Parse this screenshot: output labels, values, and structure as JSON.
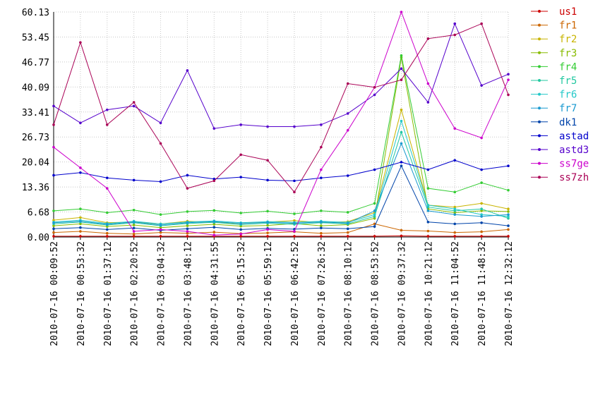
{
  "chart_data": {
    "type": "line",
    "title": "",
    "xlabel": "",
    "ylabel": "",
    "ylim": [
      0,
      60.13
    ],
    "grid": true,
    "legend_placement": "right",
    "yticks": [
      "0.00",
      "6.68",
      "13.36",
      "20.04",
      "26.73",
      "33.41",
      "40.09",
      "46.77",
      "53.45",
      "60.13"
    ],
    "x": [
      "2010-07-16 00:09:52",
      "2010-07-16 00:53:32",
      "2010-07-16 01:37:12",
      "2010-07-16 02:20:52",
      "2010-07-16 03:04:32",
      "2010-07-16 03:48:12",
      "2010-07-16 04:31:55",
      "2010-07-16 05:15:32",
      "2010-07-16 05:59:12",
      "2010-07-16 06:42:52",
      "2010-07-16 07:26:32",
      "2010-07-16 08:10:12",
      "2010-07-16 08:53:52",
      "2010-07-16 09:37:32",
      "2010-07-16 10:21:12",
      "2010-07-16 11:04:52",
      "2010-07-16 11:48:32",
      "2010-07-16 12:32:12"
    ],
    "series": [
      {
        "name": "us1",
        "color": "#cc0000",
        "values": [
          0.2,
          0.2,
          0.2,
          0.2,
          0.2,
          0.2,
          0.2,
          0.2,
          0.2,
          0.2,
          0.2,
          0.2,
          0.2,
          0.3,
          0.2,
          0.2,
          0.2,
          0.2
        ]
      },
      {
        "name": "fr1",
        "color": "#cc6600",
        "values": [
          1.2,
          1.5,
          1.0,
          0.8,
          1.2,
          1.0,
          1.3,
          0.9,
          1.1,
          1.4,
          1.0,
          1.2,
          3.5,
          1.8,
          1.6,
          1.2,
          1.4,
          2.0
        ]
      },
      {
        "name": "fr2",
        "color": "#c8b400",
        "values": [
          4.5,
          5.2,
          3.8,
          4.0,
          3.5,
          4.2,
          3.9,
          3.6,
          4.0,
          4.4,
          3.8,
          4.1,
          6.5,
          34.0,
          8.5,
          8.0,
          9.0,
          7.5
        ]
      },
      {
        "name": "fr3",
        "color": "#88bb00",
        "values": [
          3.0,
          3.5,
          2.8,
          3.2,
          2.5,
          3.0,
          3.4,
          2.9,
          3.1,
          3.6,
          3.0,
          3.3,
          5.0,
          48.0,
          7.5,
          6.5,
          7.0,
          6.8
        ]
      },
      {
        "name": "fr4",
        "color": "#33cc33",
        "values": [
          7.0,
          7.5,
          6.5,
          7.2,
          6.0,
          6.8,
          7.1,
          6.4,
          6.9,
          6.2,
          7.0,
          6.6,
          9.0,
          48.5,
          13.0,
          12.0,
          14.5,
          12.5
        ]
      },
      {
        "name": "fr5",
        "color": "#22c8a0",
        "values": [
          3.5,
          4.0,
          3.2,
          3.8,
          3.0,
          3.6,
          3.9,
          3.3,
          3.7,
          3.4,
          3.8,
          3.5,
          5.5,
          28.0,
          8.0,
          7.0,
          7.5,
          5.0
        ]
      },
      {
        "name": "fr6",
        "color": "#22c8c8",
        "values": [
          4.0,
          4.5,
          3.6,
          4.2,
          3.5,
          4.0,
          4.3,
          3.8,
          4.1,
          3.9,
          4.2,
          3.9,
          6.0,
          31.0,
          8.5,
          7.5,
          6.0,
          5.5
        ]
      },
      {
        "name": "fr7",
        "color": "#1a9ad0",
        "values": [
          3.8,
          4.2,
          3.4,
          4.0,
          3.2,
          3.8,
          4.1,
          3.6,
          3.9,
          3.7,
          4.0,
          3.7,
          7.0,
          25.0,
          7.0,
          6.0,
          5.5,
          6.0
        ]
      },
      {
        "name": "dk1",
        "color": "#0044aa",
        "values": [
          2.2,
          2.5,
          2.0,
          2.4,
          1.8,
          2.2,
          2.6,
          2.0,
          2.3,
          2.1,
          2.4,
          2.2,
          2.8,
          19.0,
          4.0,
          3.5,
          3.8,
          3.0
        ]
      },
      {
        "name": "astad",
        "color": "#0000cc",
        "values": [
          16.5,
          17.2,
          15.8,
          15.2,
          14.8,
          16.5,
          15.5,
          16.0,
          15.2,
          15.0,
          15.8,
          16.4,
          18.0,
          20.0,
          18.0,
          20.5,
          18.0,
          19.0
        ]
      },
      {
        "name": "astd3",
        "color": "#5500cc",
        "values": [
          35.0,
          30.5,
          34.0,
          35.0,
          30.5,
          44.5,
          29.0,
          30.0,
          29.5,
          29.5,
          30.0,
          33.0,
          38.0,
          45.0,
          36.0,
          57.0,
          40.5,
          43.5
        ]
      },
      {
        "name": "ss7ge",
        "color": "#cc00cc",
        "values": [
          24.0,
          18.5,
          13.0,
          1.5,
          2.0,
          1.5,
          0.5,
          0.8,
          2.0,
          1.5,
          18.0,
          28.5,
          40.0,
          60.13,
          41.0,
          29.0,
          26.5,
          42.0
        ]
      },
      {
        "name": "ss7zh",
        "color": "#aa0055",
        "values": [
          30.0,
          52.0,
          30.0,
          36.0,
          25.0,
          13.0,
          15.0,
          22.0,
          20.5,
          12.0,
          24.0,
          41.0,
          40.0,
          42.0,
          53.0,
          54.0,
          57.0,
          38.0
        ]
      }
    ]
  }
}
